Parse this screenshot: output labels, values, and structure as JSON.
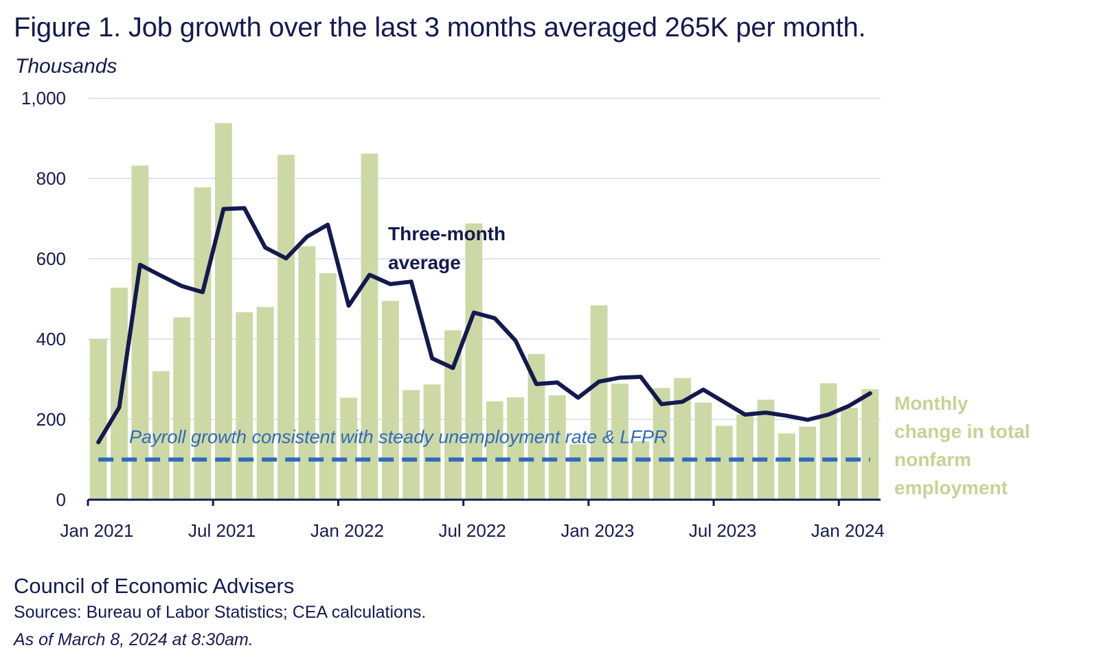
{
  "title": "Figure 1. Job growth over the last 3 months averaged 265K per month.",
  "units": "Thousands",
  "source": {
    "organization": "Council of Economic Advisers",
    "note": "Sources: Bureau of Labor Statistics; CEA calculations.",
    "as_of": "As of March 8, 2024 at 8:30am."
  },
  "colors": {
    "bars": "#cdd9a5",
    "average_line": "#141a4f",
    "reference_line": "#2f6abb",
    "grid": "#dfe3ee",
    "axis": "#141a4f"
  },
  "chart_data": {
    "type": "bar",
    "ylim": [
      0,
      1000
    ],
    "y_ticks": [
      0,
      200,
      400,
      600,
      800,
      1000
    ],
    "y_tick_labels": [
      "0",
      "200",
      "400",
      "600",
      "800",
      "1,000"
    ],
    "grid": true,
    "x_tick_labels": [
      "Jan 2021",
      "Jul 2021",
      "Jan 2022",
      "Jul 2022",
      "Jan 2023",
      "Jul 2023",
      "Jan 2024"
    ],
    "categories": [
      "2021-01",
      "2021-02",
      "2021-03",
      "2021-04",
      "2021-05",
      "2021-06",
      "2021-07",
      "2021-08",
      "2021-09",
      "2021-10",
      "2021-11",
      "2021-12",
      "2022-01",
      "2022-02",
      "2022-03",
      "2022-04",
      "2022-05",
      "2022-06",
      "2022-07",
      "2022-08",
      "2022-09",
      "2022-10",
      "2022-11",
      "2022-12",
      "2023-01",
      "2023-02",
      "2023-03",
      "2023-04",
      "2023-05",
      "2023-06",
      "2023-07",
      "2023-08",
      "2023-09",
      "2023-10",
      "2023-11",
      "2023-12",
      "2024-01",
      "2024-02"
    ],
    "series": [
      {
        "name": "Monthly change in total nonfarm employment",
        "type": "bar",
        "values": [
          400,
          528,
          832,
          320,
          454,
          778,
          938,
          467,
          480,
          859,
          631,
          564,
          254,
          862,
          495,
          273,
          287,
          422,
          688,
          245,
          255,
          363,
          260,
          138,
          484,
          289,
          146,
          278,
          303,
          242,
          184,
          212,
          249,
          165,
          182,
          290,
          229,
          275
        ]
      },
      {
        "name": "Three-month average",
        "type": "line",
        "values": [
          143,
          230,
          585,
          558,
          532,
          517,
          724,
          726,
          628,
          601,
          655,
          685,
          483,
          560,
          537,
          543,
          352,
          328,
          466,
          452,
          396,
          288,
          292,
          254,
          294,
          304,
          306,
          238,
          244,
          274,
          243,
          212,
          217,
          209,
          199,
          212,
          234,
          265
        ]
      }
    ],
    "reference_line": {
      "label": "Payroll growth consistent with steady unemployment rate & LFPR",
      "value": 100
    },
    "annotations": {
      "line_label": [
        "Three-month",
        "average"
      ],
      "bar_label": [
        "Monthly",
        "change in total",
        "nonfarm",
        "employment"
      ]
    }
  }
}
